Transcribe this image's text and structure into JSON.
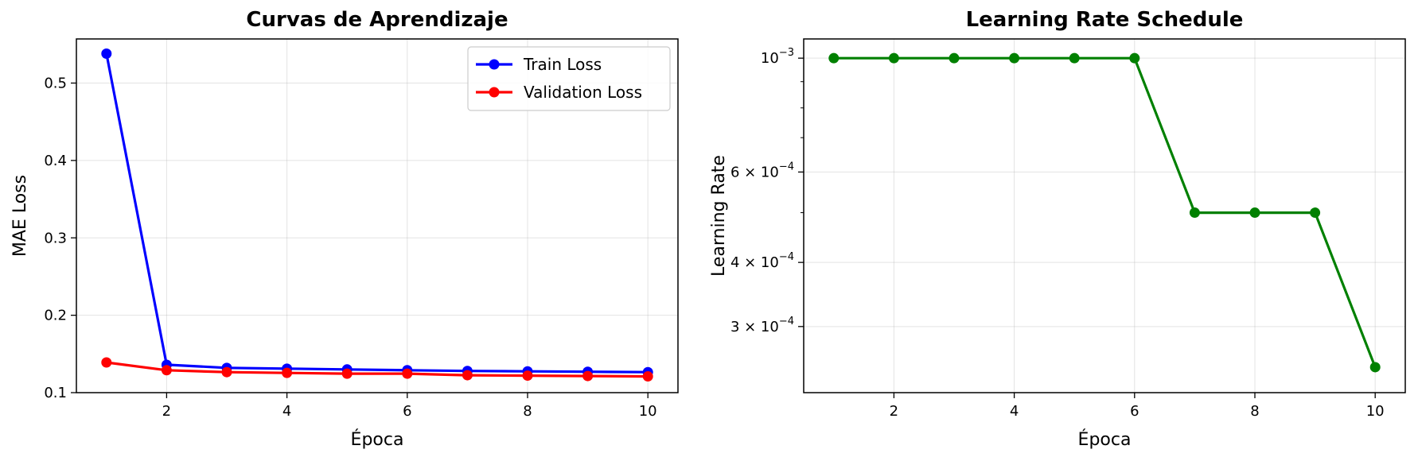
{
  "chart_data": [
    {
      "type": "line",
      "title": "Curvas de Aprendizaje",
      "xlabel": "Época",
      "ylabel": "MAE Loss",
      "x": [
        1,
        2,
        3,
        4,
        5,
        6,
        7,
        8,
        9,
        10
      ],
      "xlim": [
        0.5,
        10.5
      ],
      "ylim": [
        0.1,
        0.557
      ],
      "xticks": [
        2,
        4,
        6,
        8,
        10
      ],
      "yticks": [
        0.1,
        0.2,
        0.3,
        0.4,
        0.5
      ],
      "xtick_labels": [
        "2",
        "4",
        "6",
        "8",
        "10"
      ],
      "ytick_labels": [
        "0.1",
        "0.2",
        "0.3",
        "0.4",
        "0.5"
      ],
      "grid": true,
      "legend": "top-right",
      "series": [
        {
          "name": "Train Loss",
          "color": "#0000ff",
          "values": [
            0.538,
            0.136,
            0.132,
            0.131,
            0.13,
            0.129,
            0.128,
            0.1275,
            0.127,
            0.1265
          ]
        },
        {
          "name": "Validation Loss",
          "color": "#ff0000",
          "values": [
            0.139,
            0.129,
            0.1265,
            0.1255,
            0.1245,
            0.1245,
            0.1225,
            0.122,
            0.1215,
            0.121
          ]
        }
      ]
    },
    {
      "type": "line",
      "title": "Learning Rate Schedule",
      "xlabel": "Época",
      "ylabel": "Learning Rate",
      "yscale": "log",
      "x": [
        1,
        2,
        3,
        4,
        5,
        6,
        7,
        8,
        9,
        10
      ],
      "xlim": [
        0.5,
        10.5
      ],
      "ylim": [
        0.000223,
        0.00109
      ],
      "xticks": [
        2,
        4,
        6,
        8,
        10
      ],
      "xtick_labels": [
        "2",
        "4",
        "6",
        "8",
        "10"
      ],
      "yticks": [
        0.001,
        0.0006,
        0.0004,
        0.0003
      ],
      "ytick_labels": [
        {
          "mantissa": "",
          "base": "10",
          "exp": "−3"
        },
        {
          "mantissa": "6 × ",
          "base": "10",
          "exp": "−4"
        },
        {
          "mantissa": "4 × ",
          "base": "10",
          "exp": "−4"
        },
        {
          "mantissa": "3 × ",
          "base": "10",
          "exp": "−4"
        }
      ],
      "minor_yticks": [
        0.0009,
        0.0008,
        0.0007,
        0.0005
      ],
      "grid": true,
      "series": [
        {
          "color": "#008000",
          "values": [
            0.001,
            0.001,
            0.001,
            0.001,
            0.001,
            0.001,
            0.0005,
            0.0005,
            0.0005,
            0.00025
          ]
        }
      ]
    }
  ]
}
